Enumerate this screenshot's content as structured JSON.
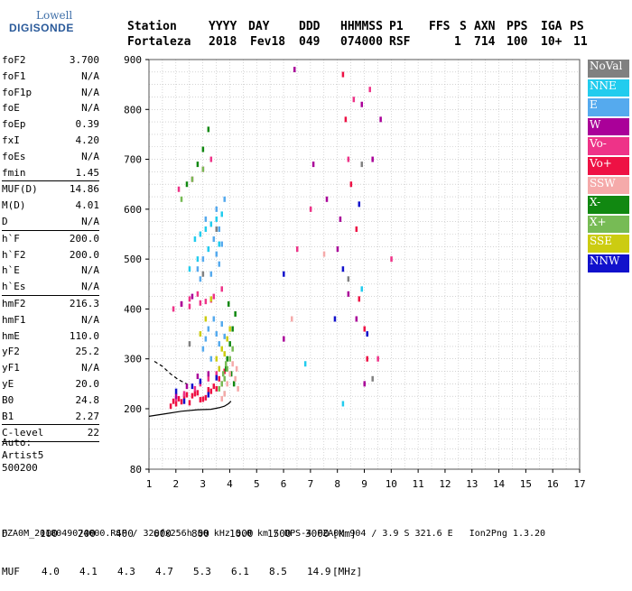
{
  "logo": {
    "line1": "Lowell",
    "line2": "DIGISONDE"
  },
  "header": {
    "labels": [
      "Station",
      "YYYY",
      "DAY",
      "DDD",
      "HHMMSS",
      "P1",
      "FFS",
      "S",
      "AXN",
      "PPS",
      "IGA",
      "PS"
    ],
    "values": [
      "Fortaleza",
      "2018",
      "Fev18",
      "049",
      "074000",
      "RSF",
      "",
      "1",
      "714",
      "100",
      "10+",
      "11"
    ]
  },
  "parameters": [
    {
      "name": "foF2",
      "value": "3.700"
    },
    {
      "name": "foF1",
      "value": "N/A"
    },
    {
      "name": "foF1p",
      "value": "N/A"
    },
    {
      "name": "foE",
      "value": "N/A"
    },
    {
      "name": "foEp",
      "value": "0.39"
    },
    {
      "name": "fxI",
      "value": "4.20"
    },
    {
      "name": "foEs",
      "value": "N/A"
    },
    {
      "name": "fmin",
      "value": "1.45"
    },
    {
      "name": "MUF(D)",
      "value": "14.86"
    },
    {
      "name": "M(D)",
      "value": "4.01"
    },
    {
      "name": "D",
      "value": "N/A"
    },
    {
      "name": "h`F",
      "value": "200.0"
    },
    {
      "name": "h`F2",
      "value": "200.0"
    },
    {
      "name": "h`E",
      "value": "N/A"
    },
    {
      "name": "h`Es",
      "value": "N/A"
    },
    {
      "name": "hmF2",
      "value": "216.3"
    },
    {
      "name": "hmF1",
      "value": "N/A"
    },
    {
      "name": "hmE",
      "value": "110.0"
    },
    {
      "name": "yF2",
      "value": "25.2"
    },
    {
      "name": "yF1",
      "value": "N/A"
    },
    {
      "name": "yE",
      "value": "20.0"
    },
    {
      "name": "B0",
      "value": "24.8"
    },
    {
      "name": "B1",
      "value": "2.27"
    },
    {
      "name": "C-level",
      "value": "22"
    }
  ],
  "auto_info": [
    "Auto:",
    "Artist5",
    "500200"
  ],
  "legend": [
    {
      "label": "NoVal",
      "color": "#808080"
    },
    {
      "label": "NNE",
      "color": "#22ccee"
    },
    {
      "label": "E",
      "color": "#55aaee"
    },
    {
      "label": "W",
      "color": "#aa0099"
    },
    {
      "label": "Vo-",
      "color": "#ee3388"
    },
    {
      "label": "Vo+",
      "color": "#ee1144"
    },
    {
      "label": "SSW",
      "color": "#f5aaaa"
    },
    {
      "label": "X-",
      "color": "#118811"
    },
    {
      "label": "X+",
      "color": "#77bb55"
    },
    {
      "label": "SSE",
      "color": "#cccc11"
    },
    {
      "label": "NNW",
      "color": "#1111cc"
    }
  ],
  "distance_table": {
    "d_label": "D",
    "d_values": [
      "100",
      "200",
      "400",
      "600",
      "800",
      "1000",
      "1500",
      "3000"
    ],
    "d_unit": "[km]",
    "muf_label": "MUF",
    "muf_values": [
      "4.0",
      "4.1",
      "4.3",
      "4.7",
      "5.3",
      "6.1",
      "8.5",
      "14.9"
    ],
    "muf_unit": "[MHz]"
  },
  "footer": "FZA0M_2018049074000.RSF / 320fx256h 50 kHz 5.0 km / DPS-4 FZA0M 904 / 3.9 S 321.6 E   Ion2Png 1.3.20",
  "chart_data": {
    "type": "scatter",
    "title": "",
    "xlabel": "",
    "ylabel": "",
    "xlim": [
      1,
      17
    ],
    "ylim": [
      80,
      900
    ],
    "x_ticks": [
      1,
      2,
      3,
      4,
      5,
      6,
      7,
      8,
      9,
      10,
      11,
      12,
      13,
      14,
      15,
      16,
      17
    ],
    "y_ticks": [
      80,
      200,
      300,
      400,
      500,
      600,
      700,
      800,
      900
    ],
    "grid": true,
    "legend_position": "right",
    "series": [
      {
        "color": "#ee1144",
        "x": [
          1.9,
          2.1,
          2.3,
          2.5,
          2.7,
          2.9,
          3.1,
          3.3,
          3.5,
          3.7,
          2.0,
          2.4,
          2.8,
          3.2,
          3.6,
          1.8,
          2.2,
          2.6,
          3.0,
          3.4,
          3.8,
          8.2,
          8.3,
          8.5,
          8.7,
          8.8,
          9.0,
          9.1
        ],
        "y": [
          215,
          220,
          225,
          212,
          230,
          218,
          222,
          235,
          240,
          250,
          210,
          228,
          232,
          238,
          260,
          205,
          214,
          226,
          219,
          245,
          275,
          870,
          780,
          650,
          560,
          420,
          360,
          300
        ]
      },
      {
        "color": "#ee3388",
        "x": [
          1.9,
          2.2,
          2.5,
          2.8,
          3.1,
          3.4,
          3.7,
          2.1,
          2.6,
          3.0,
          3.3,
          2.0,
          2.3,
          2.7,
          2.9,
          3.2,
          3.5,
          6.5,
          7.0,
          8.4,
          8.6,
          9.2,
          9.5,
          10.0,
          2.5,
          2.9,
          3.3
        ],
        "y": [
          400,
          410,
          420,
          430,
          415,
          425,
          440,
          640,
          660,
          680,
          700,
          220,
          230,
          240,
          250,
          260,
          270,
          520,
          600,
          700,
          820,
          840,
          300,
          500,
          405,
          412,
          418
        ]
      },
      {
        "color": "#55aaee",
        "x": [
          3.0,
          3.1,
          3.2,
          3.3,
          3.4,
          3.5,
          3.6,
          3.7,
          3.8,
          3.2,
          3.4,
          3.6,
          2.8,
          3.0,
          3.5,
          3.7,
          2.9,
          3.3,
          3.6,
          3.1,
          3.5,
          3.8
        ],
        "y": [
          320,
          340,
          360,
          300,
          380,
          350,
          330,
          370,
          345,
          520,
          540,
          560,
          480,
          500,
          510,
          530,
          460,
          470,
          490,
          580,
          600,
          620
        ]
      },
      {
        "color": "#22ccee",
        "x": [
          2.7,
          2.9,
          3.1,
          3.3,
          3.5,
          3.7,
          2.5,
          2.8,
          3.2,
          3.6,
          6.8,
          8.2,
          8.9
        ],
        "y": [
          540,
          550,
          560,
          570,
          580,
          590,
          480,
          500,
          520,
          530,
          290,
          210,
          440
        ]
      },
      {
        "color": "#aa0099",
        "x": [
          2.0,
          2.4,
          2.8,
          3.2,
          3.6,
          6.0,
          6.4,
          7.1,
          7.6,
          8.1,
          8.4,
          8.7,
          9.0,
          9.3,
          9.6,
          8.0,
          8.9,
          2.2,
          2.6
        ],
        "y": [
          225,
          245,
          265,
          270,
          280,
          340,
          880,
          690,
          620,
          580,
          430,
          380,
          250,
          700,
          780,
          520,
          810,
          410,
          425
        ]
      },
      {
        "color": "#118811",
        "x": [
          3.9,
          4.0,
          4.1,
          4.2,
          3.95,
          4.05,
          4.15,
          3.8,
          3.85,
          2.4,
          2.8,
          3.0,
          3.2
        ],
        "y": [
          300,
          330,
          360,
          390,
          410,
          270,
          250,
          230,
          280,
          650,
          690,
          720,
          760
        ]
      },
      {
        "color": "#77bb55",
        "x": [
          3.7,
          3.8,
          3.9,
          4.0,
          4.1,
          3.6,
          3.75,
          3.85,
          2.2,
          2.6,
          3.0
        ],
        "y": [
          250,
          260,
          280,
          300,
          320,
          240,
          270,
          290,
          620,
          660,
          680
        ]
      },
      {
        "color": "#f5aaaa",
        "x": [
          3.8,
          3.9,
          4.0,
          4.1,
          4.2,
          4.3,
          3.7,
          4.25,
          6.3,
          7.5
        ],
        "y": [
          230,
          250,
          270,
          290,
          260,
          240,
          220,
          280,
          380,
          510
        ]
      },
      {
        "color": "#cccc11",
        "x": [
          3.5,
          3.7,
          3.9,
          4.0,
          3.6,
          3.8,
          2.9,
          3.1,
          3.3
        ],
        "y": [
          300,
          320,
          340,
          360,
          280,
          310,
          350,
          380,
          420
        ]
      },
      {
        "color": "#1111cc",
        "x": [
          2.0,
          2.3,
          2.6,
          2.9,
          3.2,
          3.5,
          8.2,
          8.8,
          9.1,
          6.0,
          7.9
        ],
        "y": [
          235,
          215,
          245,
          255,
          228,
          262,
          480,
          610,
          350,
          470,
          380
        ]
      },
      {
        "color": "#808080",
        "x": [
          2.5,
          3.0,
          3.5,
          8.4,
          8.9,
          9.3
        ],
        "y": [
          330,
          470,
          560,
          460,
          690,
          260
        ]
      }
    ],
    "curves": [
      {
        "name": "",
        "color": "#000000",
        "style": "solid",
        "x": [
          1.0,
          1.6,
          2.2,
          2.8,
          3.3,
          3.6,
          3.8,
          3.95,
          4.05
        ],
        "y": [
          185,
          190,
          195,
          198,
          199,
          202,
          205,
          210,
          215
        ]
      },
      {
        "name": "",
        "color": "#000000",
        "style": "dashed",
        "x": [
          1.2,
          1.5,
          1.8,
          2.1,
          2.4
        ],
        "y": [
          295,
          285,
          270,
          258,
          250
        ]
      }
    ]
  }
}
